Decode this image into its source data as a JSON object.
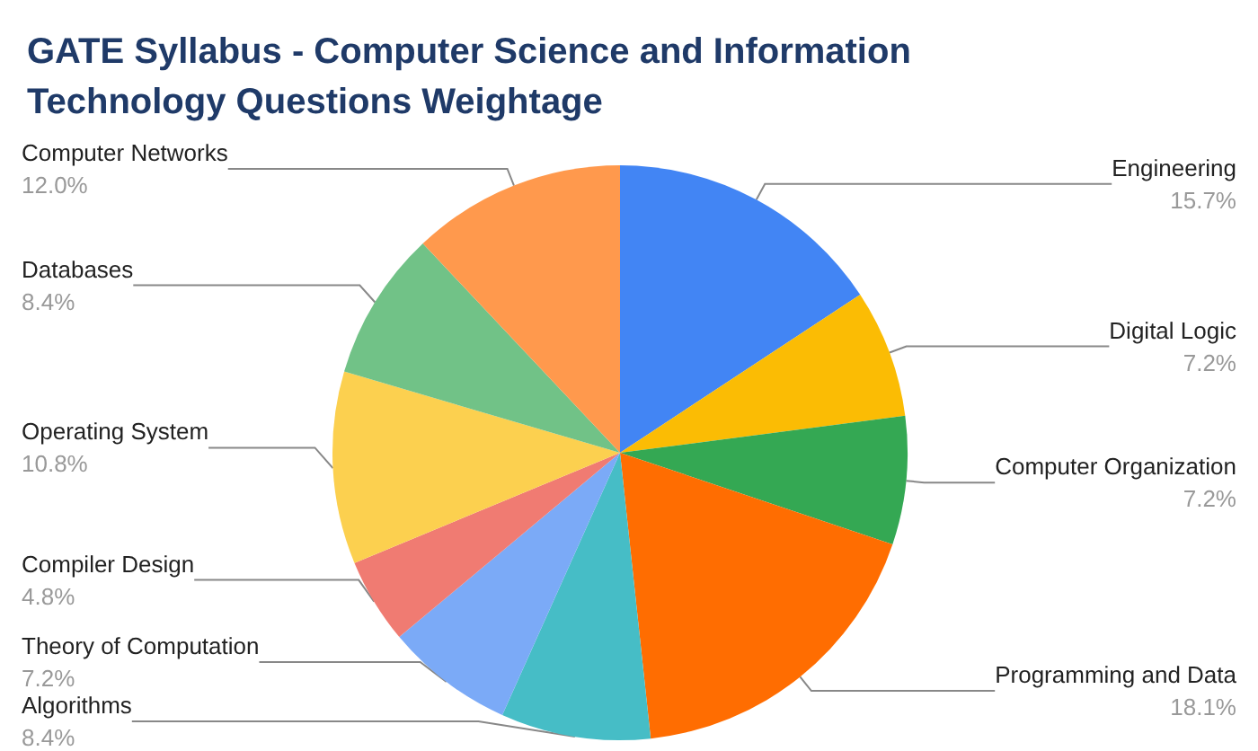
{
  "chart_data": {
    "type": "pie",
    "title": "GATE Syllabus - Computer Science and Information Technology Questions Weightage",
    "categories": [
      "Engineering",
      "Digital Logic",
      "Computer Organization",
      "Programming and Data",
      "Algorithms",
      "Theory of Computation",
      "Compiler Design",
      "Operating System",
      "Databases",
      "Computer Networks"
    ],
    "values": [
      15.7,
      7.2,
      7.2,
      18.1,
      8.4,
      7.2,
      4.8,
      10.8,
      8.4,
      12.0
    ],
    "value_labels": [
      "15.7%",
      "7.2%",
      "7.2%",
      "18.1%",
      "8.4%",
      "7.2%",
      "4.8%",
      "10.8%",
      "8.4%",
      "12.0%"
    ],
    "colors": [
      "#4285f4",
      "#fbbc04",
      "#34a853",
      "#ff6d01",
      "#46bdc6",
      "#7baaf7",
      "#f07b72",
      "#fcd04f",
      "#71c287",
      "#ff994d"
    ],
    "legend": false
  }
}
